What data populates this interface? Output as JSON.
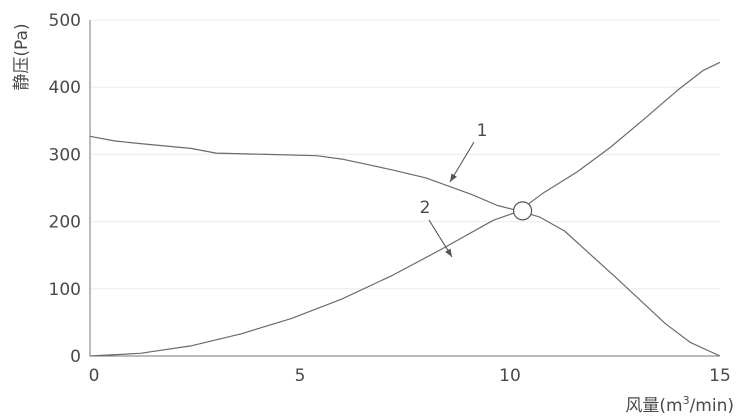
{
  "chart_data": {
    "type": "line",
    "xlabel": {
      "prefix": "风量(m",
      "sup": "3",
      "suffix": "/min)"
    },
    "ylabel": "静压(Pa)",
    "xlim": [
      0,
      15
    ],
    "ylim": [
      0,
      500
    ],
    "x_ticks": [
      0,
      5,
      10,
      15
    ],
    "y_ticks": [
      0,
      100,
      200,
      300,
      400,
      500
    ],
    "grid": "horizontal",
    "series": [
      {
        "name": "1",
        "color": "#6b6b6b",
        "x": [
          0,
          0.6,
          1.2,
          2.4,
          3.0,
          4.2,
          5.4,
          6.0,
          7.2,
          8.0,
          9.1,
          9.7,
          10.2,
          10.7,
          11.3,
          11.9,
          12.5,
          13.1,
          13.7,
          14.3,
          15.0
        ],
        "y": [
          327,
          320,
          316,
          309,
          302,
          300,
          298,
          293,
          277,
          265,
          240,
          224,
          216,
          207,
          186,
          152,
          118,
          83,
          48,
          20,
          0
        ]
      },
      {
        "name": "2",
        "color": "#6b6b6b",
        "x": [
          0,
          1.2,
          2.4,
          3.6,
          4.8,
          6.0,
          7.2,
          8.4,
          9.6,
          10.2,
          10.8,
          11.6,
          12.4,
          13.2,
          14.0,
          14.6,
          15.0
        ],
        "y": [
          0,
          4,
          15,
          33,
          56,
          85,
          120,
          160,
          202,
          215,
          243,
          274,
          311,
          353,
          396,
          425,
          437
        ]
      }
    ],
    "annotations": [
      {
        "text": "1",
        "series": "1"
      },
      {
        "text": "2",
        "series": "2"
      }
    ],
    "intersection": {
      "x": 10.3,
      "y": 216
    }
  }
}
